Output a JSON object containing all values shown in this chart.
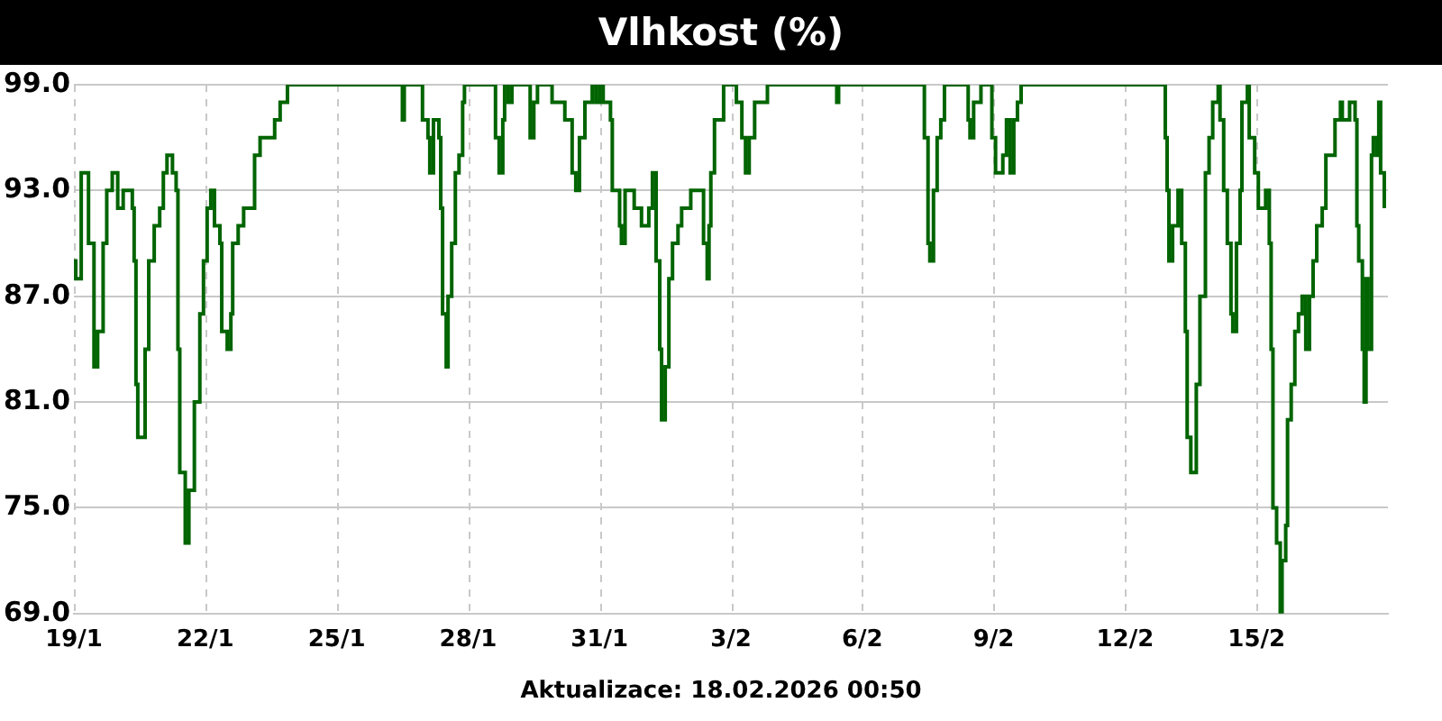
{
  "chart_data": {
    "type": "step",
    "title": "Vlhkost (%)",
    "annotations": [
      "Aktualizace: 18.02.2026 00:50"
    ],
    "x": [
      "2026-01-19T00:00",
      "2026-01-19T01:00",
      "2026-01-19T04:00",
      "2026-01-19T06:00",
      "2026-01-19T08:00",
      "2026-01-19T11:00",
      "2026-01-19T13:00",
      "2026-01-19T16:00",
      "2026-01-19T18:00",
      "2026-01-19T21:00",
      "2026-01-20T00:00",
      "2026-01-20T03:00",
      "2026-01-20T06:00",
      "2026-01-20T08:00",
      "2026-01-20T09:00",
      "2026-01-20T10:00",
      "2026-01-20T11:00",
      "2026-01-20T14:00",
      "2026-01-20T15:00",
      "2026-01-20T17:00",
      "2026-01-20T20:00",
      "2026-01-20T23:00",
      "2026-01-21T01:00",
      "2026-01-21T03:00",
      "2026-01-21T06:00",
      "2026-01-21T08:00",
      "2026-01-21T09:00",
      "2026-01-21T10:00",
      "2026-01-21T13:00",
      "2026-01-21T15:00",
      "2026-01-21T18:00",
      "2026-01-21T21:00",
      "2026-01-21T23:00",
      "2026-01-22T01:00",
      "2026-01-22T03:00",
      "2026-01-22T05:00",
      "2026-01-22T08:00",
      "2026-01-22T09:00",
      "2026-01-22T12:00",
      "2026-01-22T14:00",
      "2026-01-22T15:00",
      "2026-01-22T18:00",
      "2026-01-22T21:00",
      "2026-01-23T03:00",
      "2026-01-23T06:00",
      "2026-01-23T13:00",
      "2026-01-23T14:00",
      "2026-01-23T17:00",
      "2026-01-23T21:00",
      "2026-01-26T11:00",
      "2026-01-26T12:00",
      "2026-01-26T13:00",
      "2026-01-26T21:00",
      "2026-01-26T23:00",
      "2026-01-27T02:00",
      "2026-01-27T03:00",
      "2026-01-27T05:00",
      "2026-01-27T08:00",
      "2026-01-27T09:00",
      "2026-01-27T10:00",
      "2026-01-27T12:00",
      "2026-01-27T13:00",
      "2026-01-27T15:00",
      "2026-01-27T17:00",
      "2026-01-27T19:00",
      "2026-01-27T21:00",
      "2026-01-27T22:00",
      "2026-01-28T14:00",
      "2026-01-28T15:00",
      "2026-01-28T17:00",
      "2026-01-28T19:00",
      "2026-01-28T20:00",
      "2026-01-28T22:00",
      "2026-01-29T00:00",
      "2026-01-29T09:00",
      "2026-01-29T10:00",
      "2026-01-29T12:00",
      "2026-01-29T14:00",
      "2026-01-29T21:00",
      "2026-01-29T22:00",
      "2026-01-30T03:00",
      "2026-01-30T05:00",
      "2026-01-30T07:00",
      "2026-01-30T09:00",
      "2026-01-30T11:00",
      "2026-01-30T13:00",
      "2026-01-30T16:00",
      "2026-01-30T19:00",
      "2026-01-30T20:00",
      "2026-01-30T22:00",
      "2026-01-31T00:00",
      "2026-01-31T02:00",
      "2026-01-31T06:00",
      "2026-01-31T07:00",
      "2026-01-31T11:00",
      "2026-01-31T12:00",
      "2026-01-31T14:00",
      "2026-01-31T18:00",
      "2026-01-31T19:00",
      "2026-01-31T23:00",
      "2026-02-01T03:00",
      "2026-02-01T05:00",
      "2026-02-01T07:00",
      "2026-02-01T09:00",
      "2026-02-01T10:00",
      "2026-02-01T12:00",
      "2026-02-01T14:00",
      "2026-02-01T16:00",
      "2026-02-01T19:00",
      "2026-02-01T21:00",
      "2026-02-02T02:00",
      "2026-02-02T07:00",
      "2026-02-02T09:00",
      "2026-02-02T11:00",
      "2026-02-02T12:00",
      "2026-02-02T13:00",
      "2026-02-02T15:00",
      "2026-02-02T17:00",
      "2026-02-02T20:00",
      "2026-02-03T02:00",
      "2026-02-03T03:00",
      "2026-02-03T06:00",
      "2026-02-03T08:00",
      "2026-02-03T10:00",
      "2026-02-03T13:00",
      "2026-02-03T18:00",
      "2026-02-03T20:00",
      "2026-02-05T09:00",
      "2026-02-05T10:00",
      "2026-02-05T11:00",
      "2026-02-07T08:00",
      "2026-02-07T10:00",
      "2026-02-07T12:00",
      "2026-02-07T13:00",
      "2026-02-07T15:00",
      "2026-02-07T17:00",
      "2026-02-07T19:00",
      "2026-02-07T21:00",
      "2026-02-08T08:00",
      "2026-02-08T10:00",
      "2026-02-08T11:00",
      "2026-02-08T13:00",
      "2026-02-08T17:00",
      "2026-02-08T21:00",
      "2026-02-08T23:00",
      "2026-02-09T01:00",
      "2026-02-09T05:00",
      "2026-02-09T07:00",
      "2026-02-09T09:00",
      "2026-02-09T11:00",
      "2026-02-09T13:00",
      "2026-02-09T15:00",
      "2026-02-12T20:00",
      "2026-02-12T22:00",
      "2026-02-12T23:00",
      "2026-02-13T00:00",
      "2026-02-13T02:00",
      "2026-02-13T05:00",
      "2026-02-13T07:00",
      "2026-02-13T09:00",
      "2026-02-13T10:00",
      "2026-02-13T12:00",
      "2026-02-13T15:00",
      "2026-02-13T17:00",
      "2026-02-13T20:00",
      "2026-02-13T22:00",
      "2026-02-14T00:00",
      "2026-02-14T03:00",
      "2026-02-14T04:00",
      "2026-02-14T06:00",
      "2026-02-14T08:00",
      "2026-02-14T10:00",
      "2026-02-14T11:00",
      "2026-02-14T13:00",
      "2026-02-14T15:00",
      "2026-02-14T16:00",
      "2026-02-14T19:00",
      "2026-02-14T20:00",
      "2026-02-14T23:00",
      "2026-02-15T01:00",
      "2026-02-15T05:00",
      "2026-02-15T07:00",
      "2026-02-15T08:00",
      "2026-02-15T09:00",
      "2026-02-15T11:00",
      "2026-02-15T13:00",
      "2026-02-15T14:00",
      "2026-02-15T16:00",
      "2026-02-15T17:00",
      "2026-02-15T19:00",
      "2026-02-15T21:00",
      "2026-02-15T23:00",
      "2026-02-16T01:00",
      "2026-02-16T03:00",
      "2026-02-16T05:00",
      "2026-02-16T07:00",
      "2026-02-16T09:00",
      "2026-02-16T12:00",
      "2026-02-16T14:00",
      "2026-02-16T19:00",
      "2026-02-16T22:00",
      "2026-02-16T23:00",
      "2026-02-17T03:00",
      "2026-02-17T06:00",
      "2026-02-17T07:00",
      "2026-02-17T08:00",
      "2026-02-17T10:00",
      "2026-02-17T11:00",
      "2026-02-17T12:00",
      "2026-02-17T13:00",
      "2026-02-17T15:00",
      "2026-02-17T16:00",
      "2026-02-17T18:00",
      "2026-02-17T19:00",
      "2026-02-17T20:00",
      "2026-02-17T22:00"
    ],
    "series": [
      {
        "color": "#006400",
        "values": [
          89,
          88,
          94,
          94,
          90,
          83,
          85,
          90,
          93,
          94,
          92,
          93,
          93,
          92,
          89,
          82,
          79,
          79,
          84,
          89,
          91,
          92,
          94,
          95,
          94,
          93,
          84,
          77,
          73,
          76,
          81,
          86,
          89,
          92,
          93,
          91,
          90,
          85,
          84,
          86,
          90,
          91,
          92,
          95,
          96,
          96,
          97,
          98,
          99,
          99,
          97,
          99,
          99,
          97,
          96,
          94,
          97,
          96,
          92,
          86,
          83,
          87,
          90,
          94,
          95,
          98,
          99,
          99,
          96,
          94,
          97,
          99,
          98,
          99,
          99,
          96,
          98,
          99,
          99,
          98,
          98,
          97,
          97,
          94,
          93,
          96,
          98,
          98,
          99,
          98,
          99,
          98,
          97,
          93,
          91,
          90,
          93,
          93,
          92,
          91,
          92,
          94,
          89,
          84,
          80,
          83,
          88,
          90,
          91,
          92,
          93,
          93,
          90,
          88,
          91,
          94,
          97,
          97,
          99,
          99,
          98,
          96,
          94,
          96,
          98,
          98,
          99,
          99,
          98,
          99,
          99,
          96,
          90,
          89,
          93,
          96,
          97,
          99,
          99,
          97,
          96,
          98,
          99,
          99,
          96,
          94,
          95,
          97,
          94,
          97,
          98,
          99,
          99,
          96,
          93,
          89,
          91,
          93,
          90,
          85,
          79,
          77,
          82,
          87,
          94,
          96,
          98,
          99,
          97,
          93,
          90,
          86,
          85,
          90,
          93,
          98,
          99,
          96,
          94,
          92,
          93,
          90,
          84,
          75,
          73,
          69,
          72,
          74,
          80,
          82,
          85,
          86,
          87,
          84,
          87,
          89,
          91,
          92,
          95,
          97,
          98,
          97,
          98,
          97,
          91,
          89,
          84,
          81,
          88,
          84,
          95,
          96,
          95,
          98,
          94,
          92
        ]
      }
    ],
    "xlim": [
      "2026-01-19",
      "2026-02-18"
    ],
    "xticks": [
      {
        "value": "2026-01-19",
        "label": "19/1"
      },
      {
        "value": "2026-01-22",
        "label": "22/1"
      },
      {
        "value": "2026-01-25",
        "label": "25/1"
      },
      {
        "value": "2026-01-28",
        "label": "28/1"
      },
      {
        "value": "2026-01-31",
        "label": "31/1"
      },
      {
        "value": "2026-02-03",
        "label": "3/2"
      },
      {
        "value": "2026-02-06",
        "label": "6/2"
      },
      {
        "value": "2026-02-09",
        "label": "9/2"
      },
      {
        "value": "2026-02-12",
        "label": "12/2"
      },
      {
        "value": "2026-02-15",
        "label": "15/2"
      }
    ],
    "ylim": [
      69,
      99
    ],
    "yticks": [
      {
        "value": 69,
        "label": "69.0"
      },
      {
        "value": 75,
        "label": "75.0"
      },
      {
        "value": 81,
        "label": "81.0"
      },
      {
        "value": 87,
        "label": "87.0"
      },
      {
        "value": 93,
        "label": "93.0"
      },
      {
        "value": 99,
        "label": "99.0"
      }
    ],
    "grid": true,
    "legend": false
  }
}
